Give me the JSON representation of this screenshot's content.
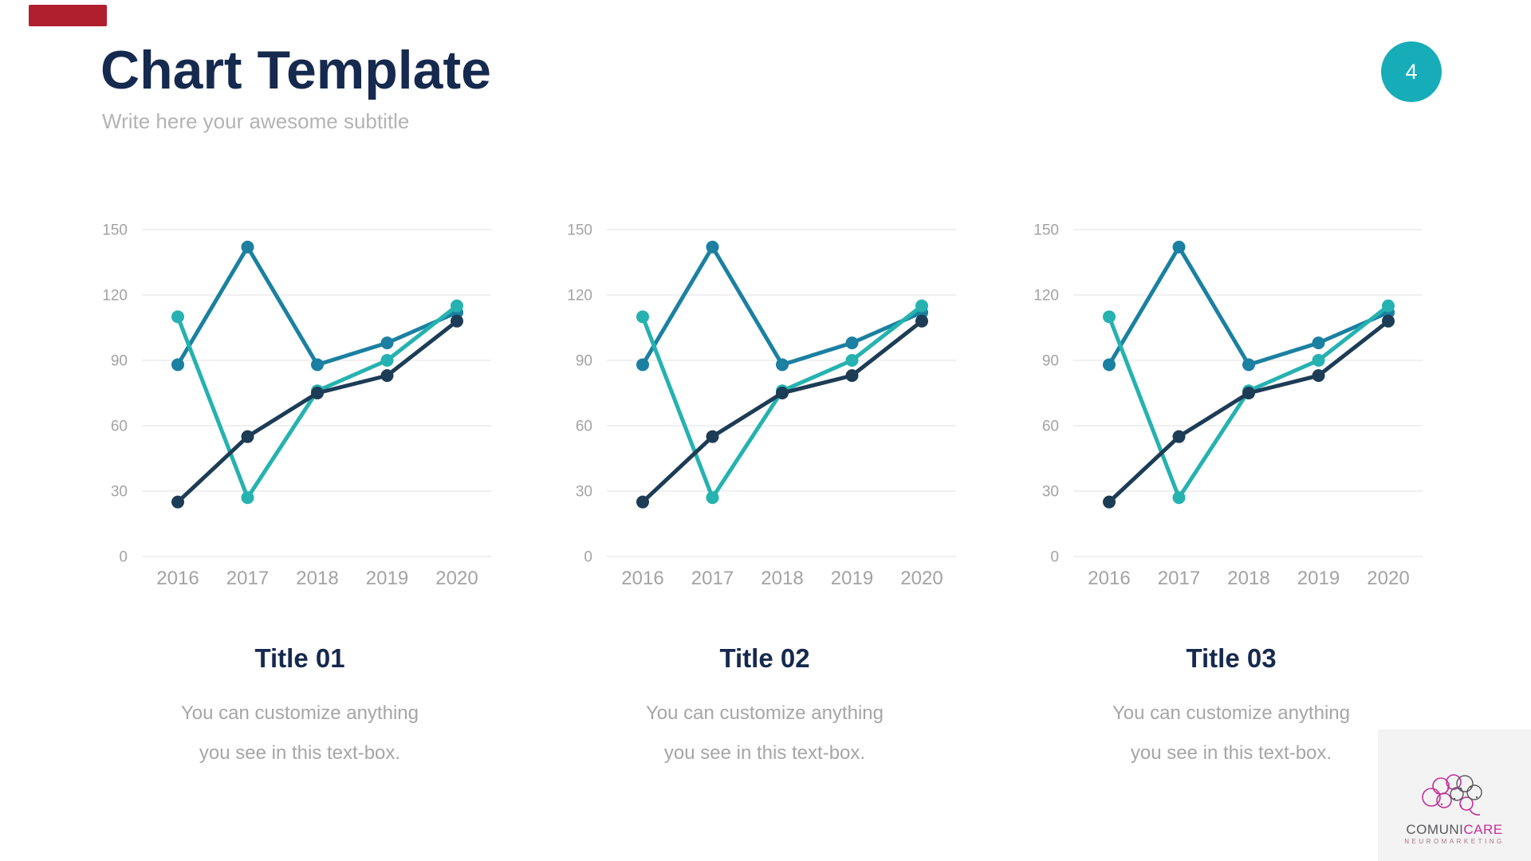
{
  "page_number": "4",
  "header": {
    "title": "Chart Template",
    "subtitle": "Write here your awesome subtitle"
  },
  "colors": {
    "accent_bar": "#b01f2e",
    "badge": "#17adb8",
    "heading": "#16294e",
    "subtitle_gray": "#b3b3b3",
    "body_gray": "#a6a6a6",
    "axis_gray": "#a3a3a3",
    "gridline": "#ececec",
    "logo_gray": "#58595b",
    "logo_pink": "#c62f9a"
  },
  "logo": {
    "name_gray": "COMUNI",
    "name_pink": "CARE",
    "tagline": "NEUROMARKETING"
  },
  "chart_data": [
    {
      "type": "line",
      "title": "Title 01",
      "caption": [
        "You can customize anything",
        "you see in this text-box."
      ],
      "categories": [
        "2016",
        "2017",
        "2018",
        "2019",
        "2020"
      ],
      "series": [
        {
          "name": "series-teal-blue",
          "color": "#1b80a1",
          "values": [
            88,
            142,
            88,
            98,
            112
          ]
        },
        {
          "name": "series-cyan",
          "color": "#25b2b0",
          "values": [
            110,
            27,
            76,
            90,
            115
          ]
        },
        {
          "name": "series-navy",
          "color": "#1d3c55",
          "values": [
            25,
            55,
            75,
            83,
            108
          ]
        }
      ],
      "xlabel": "",
      "ylabel": "",
      "ylim": [
        0,
        150
      ],
      "yticks": [
        0,
        30,
        60,
        90,
        120,
        150
      ],
      "grid": true,
      "legend": "none"
    },
    {
      "type": "line",
      "title": "Title 02",
      "caption": [
        "You can customize anything",
        "you see in this text-box."
      ],
      "categories": [
        "2016",
        "2017",
        "2018",
        "2019",
        "2020"
      ],
      "series": [
        {
          "name": "series-teal-blue",
          "color": "#1b80a1",
          "values": [
            88,
            142,
            88,
            98,
            112
          ]
        },
        {
          "name": "series-cyan",
          "color": "#25b2b0",
          "values": [
            110,
            27,
            76,
            90,
            115
          ]
        },
        {
          "name": "series-navy",
          "color": "#1d3c55",
          "values": [
            25,
            55,
            75,
            83,
            108
          ]
        }
      ],
      "xlabel": "",
      "ylabel": "",
      "ylim": [
        0,
        150
      ],
      "yticks": [
        0,
        30,
        60,
        90,
        120,
        150
      ],
      "grid": true,
      "legend": "none"
    },
    {
      "type": "line",
      "title": "Title 03",
      "caption": [
        "You can customize anything",
        "you see in this text-box."
      ],
      "categories": [
        "2016",
        "2017",
        "2018",
        "2019",
        "2020"
      ],
      "series": [
        {
          "name": "series-teal-blue",
          "color": "#1b80a1",
          "values": [
            88,
            142,
            88,
            98,
            112
          ]
        },
        {
          "name": "series-cyan",
          "color": "#25b2b0",
          "values": [
            110,
            27,
            76,
            90,
            115
          ]
        },
        {
          "name": "series-navy",
          "color": "#1d3c55",
          "values": [
            25,
            55,
            75,
            83,
            108
          ]
        }
      ],
      "xlabel": "",
      "ylabel": "",
      "ylim": [
        0,
        150
      ],
      "yticks": [
        0,
        30,
        60,
        90,
        120,
        150
      ],
      "grid": true,
      "legend": "none"
    }
  ]
}
